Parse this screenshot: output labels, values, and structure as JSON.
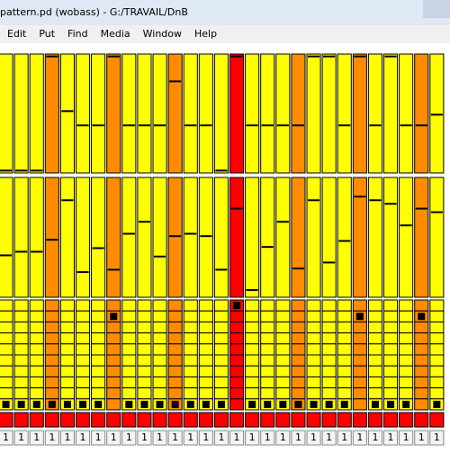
{
  "window": {
    "title": "pattern.pd  (wobass)  - G:/TRAVAIL/DnB",
    "menu": [
      "Edit",
      "Put",
      "Find",
      "Media",
      "Window",
      "Help"
    ]
  },
  "patch": {
    "column_colors": [
      "#ffff00",
      "#ffff00",
      "#ffff00",
      "#ff8c00",
      "#ffff00",
      "#ffff00",
      "#ffff00",
      "#ff8c00",
      "#ffff00",
      "#ffff00",
      "#ffff00",
      "#ff8c00",
      "#ffff00",
      "#ffff00",
      "#ffff00",
      "#ff0000",
      "#ffff00",
      "#ffff00",
      "#ffff00",
      "#ff8c00",
      "#ffff00",
      "#ffff00",
      "#ffff00",
      "#ff8c00",
      "#ffff00",
      "#ffff00",
      "#ffff00",
      "#ff8c00",
      "#ffff00"
    ],
    "slider1": [
      2,
      2,
      2,
      98,
      52,
      40,
      40,
      98,
      40,
      40,
      40,
      77,
      40,
      40,
      2,
      98,
      40,
      40,
      40,
      40,
      98,
      98,
      40,
      98,
      40,
      98,
      40,
      40,
      49
    ],
    "slider2": [
      35,
      38,
      38,
      48,
      81,
      21,
      41,
      23,
      53,
      63,
      34,
      51,
      53,
      51,
      23,
      74,
      6,
      42,
      63,
      24,
      81,
      29,
      47,
      84,
      81,
      78,
      60,
      74,
      71
    ],
    "toggles": [
      [
        9
      ],
      [
        9
      ],
      [
        9
      ],
      [
        9
      ],
      [
        9
      ],
      [
        9
      ],
      [
        9
      ],
      [
        1
      ],
      [
        9
      ],
      [
        9
      ],
      [
        9
      ],
      [
        9
      ],
      [
        9
      ],
      [
        9
      ],
      [
        9
      ],
      [
        0
      ],
      [
        9
      ],
      [
        9
      ],
      [
        9
      ],
      [
        9
      ],
      [
        9
      ],
      [
        9
      ],
      [
        9
      ],
      [
        1
      ],
      [
        9
      ],
      [
        9
      ],
      [
        9
      ],
      [
        1
      ],
      [
        9
      ]
    ],
    "numbers": [
      "1",
      "1",
      "1",
      "1",
      "1",
      "1",
      "1",
      "1",
      "1",
      "1",
      "1",
      "1",
      "1",
      "1",
      "1",
      "1",
      "1",
      "1",
      "1",
      "1",
      "1",
      "1",
      "1",
      "1",
      "1",
      "1",
      "1",
      "1",
      "1"
    ]
  }
}
